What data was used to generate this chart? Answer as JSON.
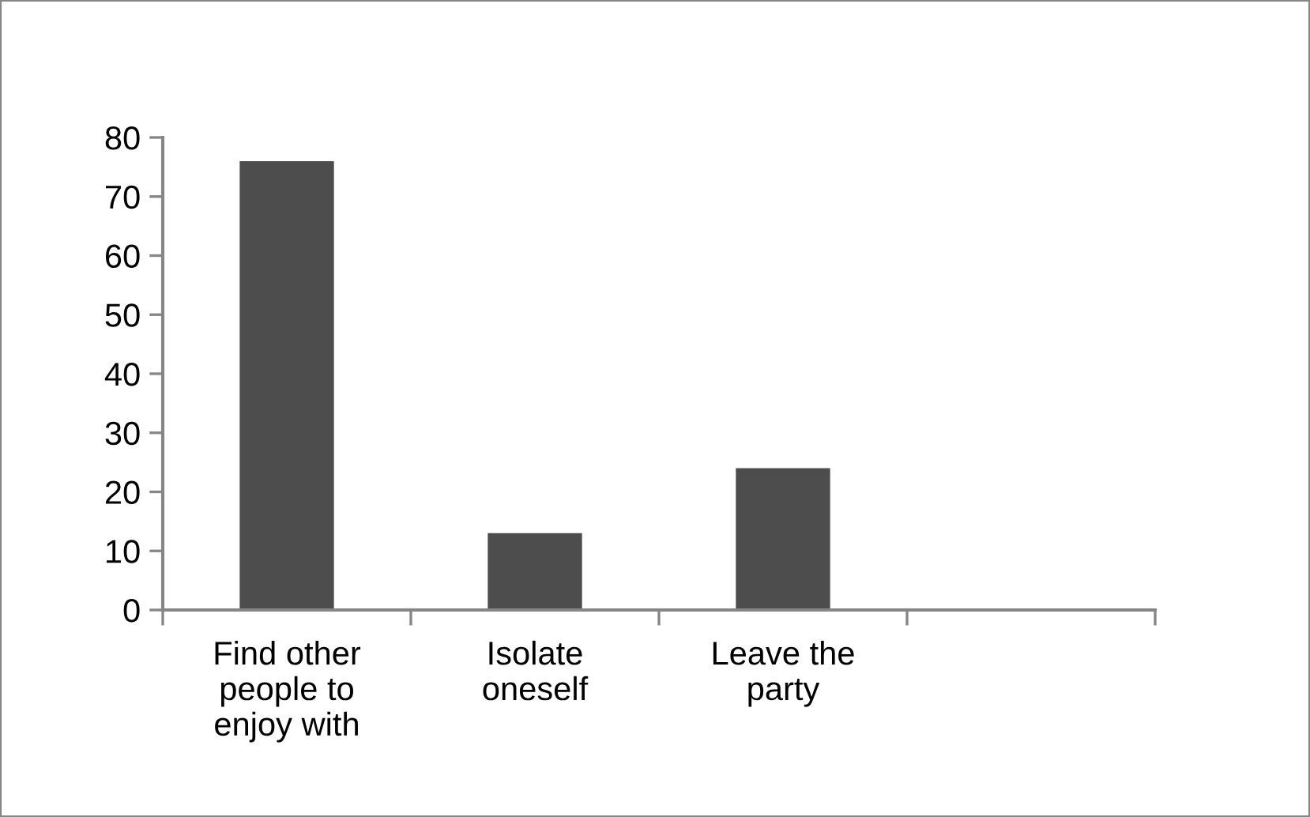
{
  "chart_data": {
    "type": "bar",
    "categories": [
      "Find other people to enjoy with",
      "Isolate oneself",
      "Leave the party",
      null
    ],
    "values": [
      76,
      13,
      24,
      null
    ],
    "color": "#4d4d4d",
    "ylim": [
      0,
      80
    ],
    "yticks": [
      0,
      10,
      20,
      30,
      40,
      50,
      60,
      70,
      80
    ],
    "grid": false
  }
}
